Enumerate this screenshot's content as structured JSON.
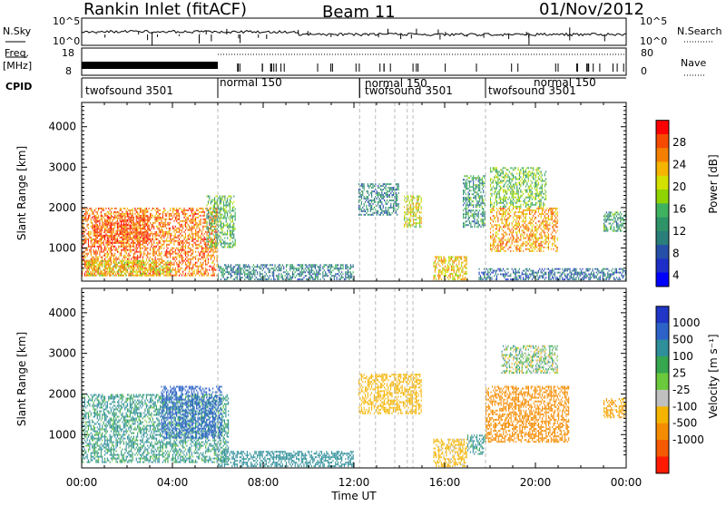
{
  "header": {
    "station": "Rankin Inlet (fitACF)",
    "beam": "Beam 11",
    "date": "01/Nov/2012"
  },
  "top_panels": {
    "nsky_label": "N.Sky",
    "nsearch_label": "N.Search",
    "nsky_ticks": [
      "10^5",
      "10^0"
    ],
    "nsearch_ticks": [
      "10^5",
      "10^0"
    ],
    "freq_label_1": "Freq.",
    "freq_label_2": "[MHz]",
    "freq_ticks": [
      "18",
      "8"
    ],
    "nave_label": "Nave",
    "nave_ticks": [
      "80",
      "0"
    ],
    "cpid_label": "CPID",
    "cpid_segments": [
      {
        "label": "twofsound 3501",
        "start_h": 0.0,
        "end_h": 6.0
      },
      {
        "label": "normal 150",
        "start_h": 6.0,
        "end_h": 12.25
      },
      {
        "label": "normal 150",
        "start_h": 12.25,
        "end_h": 17.8
      },
      {
        "label": "twofsound 3501",
        "start_h": 12.25,
        "end_h": 17.8
      },
      {
        "label": "twofsound 3501",
        "start_h": 17.8,
        "end_h": 24.0
      },
      {
        "label": "normal 150",
        "start_h": 17.8,
        "end_h": 24.0
      }
    ]
  },
  "chart_data": [
    {
      "type": "heatmap",
      "panel": "power",
      "xlabel": "Time UT",
      "ylabel": "Slant Range [km]",
      "xlim": [
        0,
        24
      ],
      "ylim": [
        180,
        4600
      ],
      "x_ticks": [
        "00:00",
        "04:00",
        "08:00",
        "12:00",
        "16:00",
        "20:00",
        "00:00"
      ],
      "y_ticks": [
        1000,
        2000,
        3000,
        4000
      ],
      "colorbar_label": "Power [dB]",
      "colorbar_ticks": [
        "28",
        "24",
        "20",
        "16",
        "12",
        "8",
        "4"
      ],
      "colorbar_colors": [
        "#ff0000",
        "#f54a00",
        "#f57f00",
        "#f5b400",
        "#d4e000",
        "#8fd400",
        "#3fb25f",
        "#2e9467",
        "#2a7f7a",
        "#264fa8",
        "#1d2fc7",
        "#0000ff"
      ],
      "regions": [
        {
          "t0": 0.0,
          "t1": 6.0,
          "r0": 300,
          "r1": 2000,
          "value": 26
        },
        {
          "t0": 0.5,
          "t1": 3.0,
          "r0": 1100,
          "r1": 1800,
          "value": 28
        },
        {
          "t0": 0.2,
          "t1": 4.0,
          "r0": 300,
          "r1": 700,
          "value": 20
        },
        {
          "t0": 5.5,
          "t1": 6.8,
          "r0": 1000,
          "r1": 2300,
          "value": 14
        },
        {
          "t0": 6.0,
          "t1": 12.0,
          "r0": 200,
          "r1": 600,
          "value": 10
        },
        {
          "t0": 12.2,
          "t1": 14.0,
          "r0": 1800,
          "r1": 2600,
          "value": 10
        },
        {
          "t0": 14.2,
          "t1": 15.0,
          "r0": 1500,
          "r1": 2300,
          "value": 20
        },
        {
          "t0": 15.5,
          "t1": 17.0,
          "r0": 200,
          "r1": 800,
          "value": 22
        },
        {
          "t0": 16.8,
          "t1": 17.8,
          "r0": 1500,
          "r1": 2800,
          "value": 12
        },
        {
          "t0": 18.0,
          "t1": 21.0,
          "r0": 900,
          "r1": 2000,
          "value": 24
        },
        {
          "t0": 18.0,
          "t1": 20.5,
          "r0": 2000,
          "r1": 3000,
          "value": 16
        },
        {
          "t0": 17.5,
          "t1": 24.0,
          "r0": 200,
          "r1": 500,
          "value": 8
        },
        {
          "t0": 23.0,
          "t1": 24.0,
          "r0": 1400,
          "r1": 1900,
          "value": 12
        }
      ]
    },
    {
      "type": "heatmap",
      "panel": "velocity",
      "xlabel": "Time UT",
      "ylabel": "Slant Range [km]",
      "xlim": [
        0,
        24
      ],
      "ylim": [
        180,
        4600
      ],
      "x_ticks": [
        "00:00",
        "04:00",
        "08:00",
        "12:00",
        "16:00",
        "20:00",
        "00:00"
      ],
      "y_ticks": [
        1000,
        2000,
        3000,
        4000
      ],
      "colorbar_label": "Velocity [m s⁻¹]",
      "colorbar_ticks": [
        "1000",
        "500",
        "100",
        "25",
        "-25",
        "-100",
        "-500",
        "-1000"
      ],
      "colorbar_colors": [
        "#1f36c6",
        "#2d63c8",
        "#2f8f9a",
        "#36a64f",
        "#6bc93c",
        "#c0c0c0",
        "#f5b400",
        "#f58c00",
        "#f55a00",
        "#ff1a00"
      ],
      "regions": [
        {
          "t0": 0.0,
          "t1": 6.5,
          "r0": 300,
          "r1": 2000,
          "value": 150
        },
        {
          "t0": 3.5,
          "t1": 6.2,
          "r0": 900,
          "r1": 2200,
          "value": 800
        },
        {
          "t0": 6.0,
          "t1": 12.0,
          "r0": 200,
          "r1": 600,
          "value": 300
        },
        {
          "t0": 12.2,
          "t1": 15.0,
          "r0": 1500,
          "r1": 2500,
          "value": -300
        },
        {
          "t0": 15.5,
          "t1": 17.0,
          "r0": 200,
          "r1": 900,
          "value": -200
        },
        {
          "t0": 17.0,
          "t1": 17.8,
          "r0": 500,
          "r1": 1000,
          "value": 200
        },
        {
          "t0": 17.8,
          "t1": 21.5,
          "r0": 800,
          "r1": 2200,
          "value": -800
        },
        {
          "t0": 18.5,
          "t1": 21.0,
          "r0": 2500,
          "r1": 3200,
          "value": 0
        },
        {
          "t0": 23.0,
          "t1": 24.0,
          "r0": 1400,
          "r1": 1900,
          "value": -500
        }
      ]
    }
  ]
}
